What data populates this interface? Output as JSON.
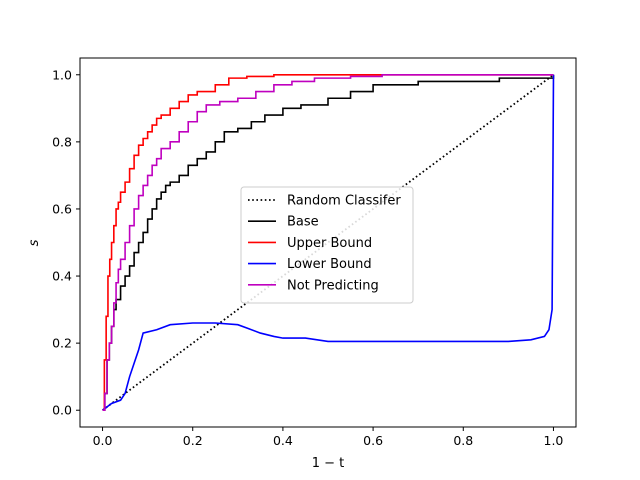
{
  "chart_data": {
    "type": "line",
    "title": "",
    "xlabel": "1 − t",
    "ylabel": "s",
    "xlim": [
      -0.05,
      1.05
    ],
    "ylim": [
      -0.05,
      1.05
    ],
    "xticks": [
      0.0,
      0.2,
      0.4,
      0.6,
      0.8,
      1.0
    ],
    "yticks": [
      0.0,
      0.2,
      0.4,
      0.6,
      0.8,
      1.0
    ],
    "xtick_labels": [
      "0.0",
      "0.2",
      "0.4",
      "0.6",
      "0.8",
      "1.0"
    ],
    "ytick_labels": [
      "0.0",
      "0.2",
      "0.4",
      "0.6",
      "0.8",
      "1.0"
    ],
    "grid": false,
    "legend_position": "center",
    "series": [
      {
        "name": "Random Classifer",
        "color": "#000000",
        "dash": "dotted",
        "step": false,
        "x": [
          0.0,
          1.0
        ],
        "y": [
          0.0,
          1.0
        ]
      },
      {
        "name": "Base",
        "color": "#000000",
        "dash": "solid",
        "step": true,
        "x": [
          0.0,
          0.005,
          0.01,
          0.015,
          0.02,
          0.025,
          0.03,
          0.04,
          0.05,
          0.06,
          0.07,
          0.08,
          0.09,
          0.1,
          0.11,
          0.12,
          0.13,
          0.14,
          0.15,
          0.17,
          0.19,
          0.21,
          0.23,
          0.25,
          0.27,
          0.3,
          0.33,
          0.36,
          0.4,
          0.44,
          0.5,
          0.55,
          0.6,
          0.7,
          0.8,
          0.88,
          1.0
        ],
        "y": [
          0.0,
          0.05,
          0.15,
          0.2,
          0.25,
          0.3,
          0.33,
          0.37,
          0.4,
          0.43,
          0.47,
          0.5,
          0.53,
          0.57,
          0.6,
          0.63,
          0.65,
          0.67,
          0.68,
          0.7,
          0.73,
          0.75,
          0.77,
          0.8,
          0.83,
          0.84,
          0.86,
          0.88,
          0.9,
          0.91,
          0.93,
          0.95,
          0.97,
          0.98,
          0.98,
          0.99,
          1.0
        ]
      },
      {
        "name": "Upper Bound",
        "color": "#ff0000",
        "dash": "solid",
        "step": true,
        "x": [
          0.0,
          0.004,
          0.008,
          0.012,
          0.016,
          0.02,
          0.025,
          0.03,
          0.035,
          0.04,
          0.05,
          0.06,
          0.07,
          0.08,
          0.09,
          0.1,
          0.11,
          0.12,
          0.13,
          0.15,
          0.17,
          0.19,
          0.21,
          0.25,
          0.28,
          0.32,
          0.38,
          0.45,
          1.0
        ],
        "y": [
          0.0,
          0.15,
          0.28,
          0.4,
          0.45,
          0.5,
          0.55,
          0.6,
          0.62,
          0.65,
          0.68,
          0.72,
          0.76,
          0.79,
          0.81,
          0.83,
          0.85,
          0.87,
          0.88,
          0.9,
          0.92,
          0.94,
          0.95,
          0.97,
          0.99,
          0.995,
          1.0,
          1.0,
          1.0
        ]
      },
      {
        "name": "Lower Bound",
        "color": "#0000ff",
        "dash": "solid",
        "step": false,
        "x": [
          0.0,
          0.02,
          0.04,
          0.05,
          0.06,
          0.07,
          0.08,
          0.09,
          0.12,
          0.15,
          0.2,
          0.25,
          0.3,
          0.32,
          0.35,
          0.38,
          0.4,
          0.45,
          0.5,
          0.6,
          0.7,
          0.8,
          0.9,
          0.95,
          0.98,
          0.99,
          0.997,
          1.0,
          1.0
        ],
        "y": [
          0.0,
          0.02,
          0.03,
          0.05,
          0.1,
          0.14,
          0.18,
          0.23,
          0.24,
          0.255,
          0.26,
          0.26,
          0.255,
          0.245,
          0.23,
          0.22,
          0.215,
          0.215,
          0.205,
          0.205,
          0.205,
          0.205,
          0.205,
          0.21,
          0.22,
          0.24,
          0.3,
          0.98,
          1.0
        ]
      },
      {
        "name": "Not Predicting",
        "color": "#bf00bf",
        "dash": "solid",
        "step": true,
        "x": [
          0.0,
          0.005,
          0.01,
          0.015,
          0.02,
          0.025,
          0.03,
          0.035,
          0.04,
          0.05,
          0.06,
          0.07,
          0.08,
          0.09,
          0.1,
          0.11,
          0.12,
          0.13,
          0.15,
          0.17,
          0.19,
          0.21,
          0.23,
          0.26,
          0.3,
          0.34,
          0.38,
          0.42,
          0.47,
          0.55,
          0.62,
          1.0
        ],
        "y": [
          0.0,
          0.05,
          0.15,
          0.2,
          0.25,
          0.32,
          0.38,
          0.42,
          0.45,
          0.5,
          0.55,
          0.6,
          0.64,
          0.67,
          0.7,
          0.73,
          0.75,
          0.78,
          0.8,
          0.83,
          0.86,
          0.89,
          0.91,
          0.92,
          0.93,
          0.95,
          0.97,
          0.98,
          0.99,
          0.995,
          1.0,
          1.0
        ]
      }
    ]
  }
}
